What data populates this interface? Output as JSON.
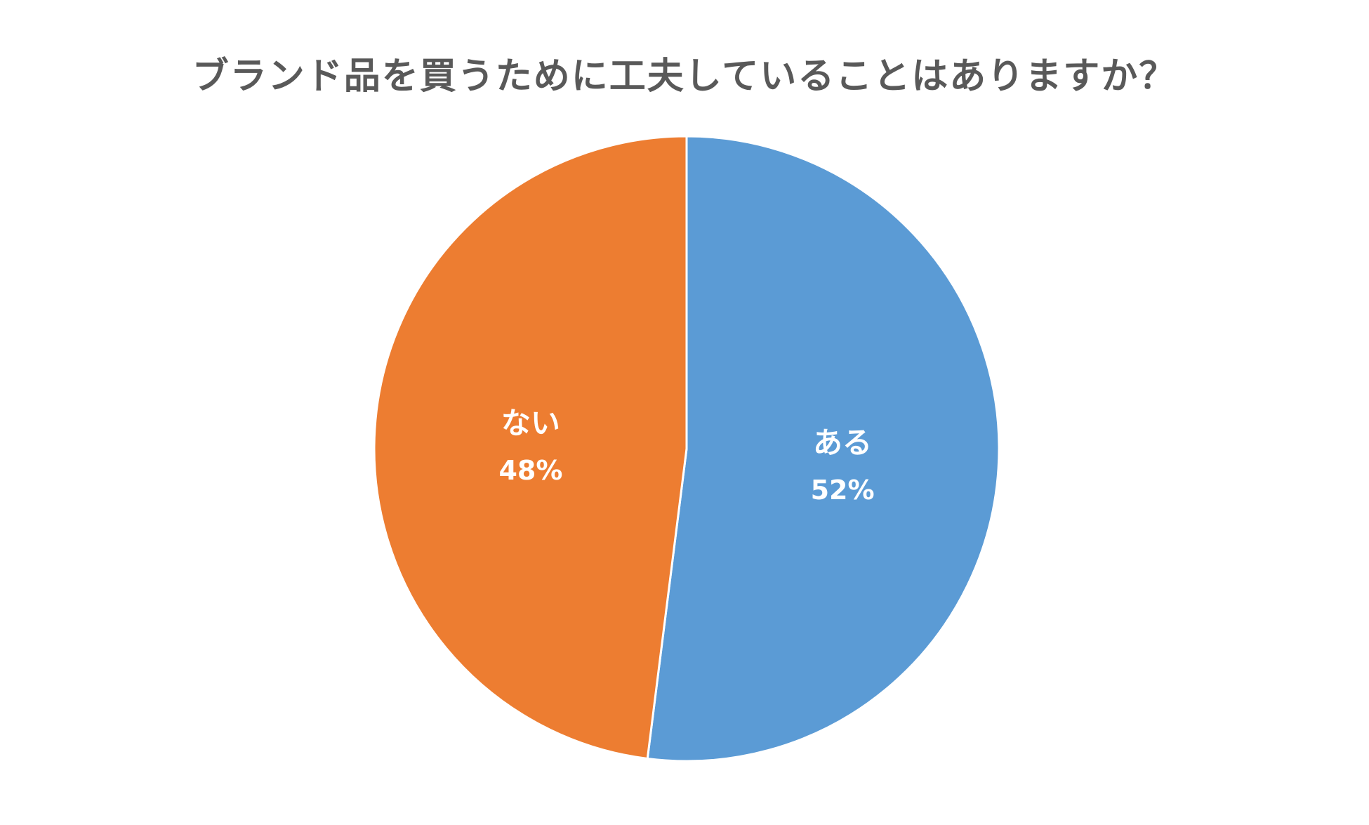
{
  "chart_data": {
    "type": "pie",
    "title": "ブランド品を買うために工夫していることはありますか？",
    "slices": [
      {
        "label": "ある",
        "value": 52,
        "value_label": "52%",
        "color": "#5b9bd5"
      },
      {
        "label": "ない",
        "value": 48,
        "value_label": "48%",
        "color": "#ed7d31"
      }
    ],
    "start_angle": "12 o'clock",
    "direction": "clockwise",
    "legend": "none",
    "data_labels": "inside"
  }
}
